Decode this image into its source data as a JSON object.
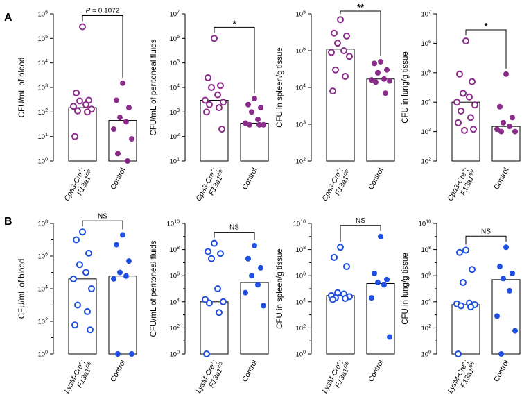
{
  "colors": {
    "purple": "#8b2c8b",
    "blue": "#1f4fe0",
    "axis": "#000000"
  },
  "panels": [
    {
      "letter": "A",
      "xcats": [
        {
          "main": "Cpa3-Cre",
          "sup": "+",
          "tail": ";",
          "line2": "F13a1",
          "line2_sup": "fl/fl",
          "italic": true
        },
        {
          "main": "Control",
          "sup": "",
          "tail": "",
          "line2": "",
          "line2_sup": "",
          "italic": false
        }
      ],
      "charts": [
        {
          "type": "scatter-bar",
          "ylabel": "CFU/mL of blood",
          "ylim_log10": [
            0,
            6
          ],
          "bars": [
            150,
            45
          ],
          "series": [
            {
              "name": "Cpa3-Cre+;F13a1fl/fl",
              "style": "open",
              "color": "purple",
              "values": [
                300000,
                600,
                300,
                280,
                200,
                170,
                130,
                110,
                100,
                10
              ]
            },
            {
              "name": "Control",
              "style": "filled",
              "color": "purple",
              "values": [
                1500,
                300,
                150,
                60,
                40,
                20,
                8,
                2,
                1
              ]
            }
          ],
          "significance": {
            "label": "P = 0.1072",
            "p_prefix": "P",
            "p_rest": " = 0.1072"
          }
        },
        {
          "type": "scatter-bar",
          "ylabel": "CFU/mL of peritoneal fluids",
          "ylim_log10": [
            1,
            7
          ],
          "bars": [
            3000,
            350
          ],
          "series": [
            {
              "name": "Cpa3-Cre+;F13a1fl/fl",
              "style": "open",
              "color": "purple",
              "values": [
                1000000,
                25000,
                12000,
                10000,
                5000,
                3000,
                2500,
                2000,
                1500,
                1000,
                200
              ]
            },
            {
              "name": "Control",
              "style": "filled",
              "color": "purple",
              "values": [
                3500,
                2000,
                1500,
                1000,
                500,
                350,
                300,
                300,
                300
              ]
            }
          ],
          "significance": {
            "label": "*"
          }
        },
        {
          "type": "scatter-bar",
          "ylabel": "CFU in spleen/g tissue",
          "ylim_log10": [
            2,
            6
          ],
          "bars": [
            110000,
            17000
          ],
          "series": [
            {
              "name": "Cpa3-Cre+;F13a1fl/fl",
              "style": "open",
              "color": "purple",
              "values": [
                700000,
                300000,
                250000,
                160000,
                100000,
                90000,
                70000,
                30000,
                20000,
                8000
              ]
            },
            {
              "name": "Control",
              "style": "filled",
              "color": "purple",
              "values": [
                50000,
                45000,
                30000,
                25000,
                17000,
                16000,
                15000,
                14000,
                7000
              ]
            }
          ],
          "significance": {
            "label": "**"
          }
        },
        {
          "type": "scatter-bar",
          "ylabel": "CFU in lung/g tissue",
          "ylim_log10": [
            2,
            7
          ],
          "bars": [
            10000,
            1500
          ],
          "series": [
            {
              "name": "Cpa3-Cre+;F13a1fl/fl",
              "style": "open",
              "color": "purple",
              "values": [
                1200000,
                90000,
                50000,
                20000,
                15000,
                10000,
                8000,
                5000,
                3000,
                2000,
                1200,
                1100
              ]
            },
            {
              "name": "Control",
              "style": "filled",
              "color": "purple",
              "values": [
                90000,
                7000,
                3000,
                2000,
                1500,
                1200,
                1000,
                1000
              ]
            }
          ],
          "significance": {
            "label": "*"
          }
        }
      ]
    },
    {
      "letter": "B",
      "xcats": [
        {
          "main": "LysM-Cre",
          "sup": "+",
          "tail": ";",
          "line2": "F13a1",
          "line2_sup": "fl/fl",
          "italic": true
        },
        {
          "main": "Control",
          "sup": "",
          "tail": "",
          "line2": "",
          "line2_sup": "",
          "italic": false
        }
      ],
      "charts": [
        {
          "type": "scatter-bar",
          "ylabel": "CFU/mL of blood",
          "ylim_log10": [
            0,
            8
          ],
          "bars": [
            40000,
            60000
          ],
          "series": [
            {
              "name": "LysM-Cre+;F13a1fl/fl",
              "style": "open",
              "color": "blue",
              "values": [
                30000000,
                10000000,
                1500000,
                300000,
                100000,
                40000,
                10000,
                1000,
                400,
                60,
                30
              ]
            },
            {
              "name": "Control",
              "style": "filled",
              "color": "blue",
              "values": [
                20000000,
                5000000,
                500000,
                100000,
                60000,
                40000,
                1,
                1
              ]
            }
          ],
          "significance": {
            "label": "NS"
          }
        },
        {
          "type": "scatter-bar",
          "ylabel": "CFU/mL of peritoneal fluids",
          "ylim_log10": [
            0,
            10
          ],
          "bars": [
            10000,
            300000
          ],
          "series": [
            {
              "name": "LysM-Cre+;F13a1fl/fl",
              "style": "open",
              "color": "blue",
              "values": [
                300000000,
                70000000,
                50000000,
                20000000,
                100000,
                15000,
                10000,
                8000,
                1500,
                1
              ]
            },
            {
              "name": "Control",
              "style": "filled",
              "color": "blue",
              "values": [
                200000000,
                20000000,
                4000000,
                1000000,
                200000,
                50000,
                5000
              ]
            }
          ],
          "significance": {
            "label": "NS"
          }
        },
        {
          "type": "scatter-bar",
          "ylabel": "CFU in spleen/g tissue",
          "ylim_log10": [
            0,
            10
          ],
          "bars": [
            30000,
            250000
          ],
          "series": [
            {
              "name": "LysM-Cre+;F13a1fl/fl",
              "style": "open",
              "color": "blue",
              "values": [
                150000000,
                25000000,
                5000000,
                50000,
                40000,
                30000,
                25000,
                20000,
                18000,
                15000
              ]
            },
            {
              "name": "Control",
              "style": "filled",
              "color": "blue",
              "values": [
                1000000000,
                1500000,
                500000,
                300000,
                200000,
                20000,
                20
              ]
            }
          ],
          "significance": {
            "label": "NS"
          }
        },
        {
          "type": "scatter-bar",
          "ylabel": "CFU in lung/g tissue",
          "ylim_log10": [
            0,
            10
          ],
          "bars": [
            6000,
            500000
          ],
          "series": [
            {
              "name": "LysM-Cre+;F13a1fl/fl",
              "style": "open",
              "color": "blue",
              "values": [
                90000000,
                60000000,
                3000000,
                300000,
                8000,
                7000,
                6000,
                5000,
                4000,
                1
              ]
            },
            {
              "name": "Control",
              "style": "filled",
              "color": "blue",
              "values": [
                150000000,
                5000000,
                1500000,
                600000,
                70000,
                800,
                60,
                1
              ]
            }
          ],
          "significance": {
            "label": "NS"
          }
        }
      ]
    }
  ],
  "chart_data": [
    {
      "type": "scatter-bar",
      "panel": "A",
      "title": "",
      "xlabel": "",
      "ylabel": "CFU/mL of blood",
      "yscale": "log",
      "ylim": [
        1,
        1000000
      ],
      "categories": [
        "Cpa3-Cre+;F13a1fl/fl",
        "Control"
      ],
      "bar_values": [
        150,
        45
      ],
      "series": [
        {
          "name": "Cpa3-Cre+;F13a1fl/fl",
          "values": [
            300000,
            600,
            300,
            280,
            200,
            170,
            130,
            110,
            100,
            10
          ]
        },
        {
          "name": "Control",
          "values": [
            1500,
            300,
            150,
            60,
            40,
            20,
            8,
            2,
            1
          ]
        }
      ],
      "annotation": "P = 0.1072"
    },
    {
      "type": "scatter-bar",
      "panel": "A",
      "title": "",
      "xlabel": "",
      "ylabel": "CFU/mL of peritoneal fluids",
      "yscale": "log",
      "ylim": [
        10,
        10000000
      ],
      "categories": [
        "Cpa3-Cre+;F13a1fl/fl",
        "Control"
      ],
      "bar_values": [
        3000,
        350
      ],
      "series": [
        {
          "name": "Cpa3-Cre+;F13a1fl/fl",
          "values": [
            1000000,
            25000,
            12000,
            10000,
            5000,
            3000,
            2500,
            2000,
            1500,
            1000,
            200
          ]
        },
        {
          "name": "Control",
          "values": [
            3500,
            2000,
            1500,
            1000,
            500,
            350,
            300,
            300,
            300
          ]
        }
      ],
      "annotation": "*"
    },
    {
      "type": "scatter-bar",
      "panel": "A",
      "title": "",
      "xlabel": "",
      "ylabel": "CFU in spleen/g tissue",
      "yscale": "log",
      "ylim": [
        100,
        1000000
      ],
      "categories": [
        "Cpa3-Cre+;F13a1fl/fl",
        "Control"
      ],
      "bar_values": [
        110000,
        17000
      ],
      "series": [
        {
          "name": "Cpa3-Cre+;F13a1fl/fl",
          "values": [
            700000,
            300000,
            250000,
            160000,
            100000,
            90000,
            70000,
            30000,
            20000,
            8000
          ]
        },
        {
          "name": "Control",
          "values": [
            50000,
            45000,
            30000,
            25000,
            17000,
            16000,
            15000,
            14000,
            7000
          ]
        }
      ],
      "annotation": "**"
    },
    {
      "type": "scatter-bar",
      "panel": "A",
      "title": "",
      "xlabel": "",
      "ylabel": "CFU in lung/g tissue",
      "yscale": "log",
      "ylim": [
        100,
        10000000
      ],
      "categories": [
        "Cpa3-Cre+;F13a1fl/fl",
        "Control"
      ],
      "bar_values": [
        10000,
        1500
      ],
      "series": [
        {
          "name": "Cpa3-Cre+;F13a1fl/fl",
          "values": [
            1200000,
            90000,
            50000,
            20000,
            15000,
            10000,
            8000,
            5000,
            3000,
            2000,
            1200,
            1100
          ]
        },
        {
          "name": "Control",
          "values": [
            90000,
            7000,
            3000,
            2000,
            1500,
            1200,
            1000,
            1000
          ]
        }
      ],
      "annotation": "*"
    },
    {
      "type": "scatter-bar",
      "panel": "B",
      "title": "",
      "xlabel": "",
      "ylabel": "CFU/mL of blood",
      "yscale": "log",
      "ylim": [
        1,
        100000000
      ],
      "categories": [
        "LysM-Cre+;F13a1fl/fl",
        "Control"
      ],
      "bar_values": [
        40000,
        60000
      ],
      "series": [
        {
          "name": "LysM-Cre+;F13a1fl/fl",
          "values": [
            30000000,
            10000000,
            1500000,
            300000,
            100000,
            40000,
            10000,
            1000,
            400,
            60,
            30
          ]
        },
        {
          "name": "Control",
          "values": [
            20000000,
            5000000,
            500000,
            100000,
            60000,
            40000,
            1,
            1
          ]
        }
      ],
      "annotation": "NS"
    },
    {
      "type": "scatter-bar",
      "panel": "B",
      "title": "",
      "xlabel": "",
      "ylabel": "CFU/mL of peritoneal fluids",
      "yscale": "log",
      "ylim": [
        1,
        10000000000
      ],
      "categories": [
        "LysM-Cre+;F13a1fl/fl",
        "Control"
      ],
      "bar_values": [
        10000,
        300000
      ],
      "series": [
        {
          "name": "LysM-Cre+;F13a1fl/fl",
          "values": [
            300000000,
            70000000,
            50000000,
            20000000,
            100000,
            15000,
            10000,
            8000,
            1500,
            1
          ]
        },
        {
          "name": "Control",
          "values": [
            200000000,
            20000000,
            4000000,
            1000000,
            200000,
            50000,
            5000
          ]
        }
      ],
      "annotation": "NS"
    },
    {
      "type": "scatter-bar",
      "panel": "B",
      "title": "",
      "xlabel": "",
      "ylabel": "CFU in spleen/g tissue",
      "yscale": "log",
      "ylim": [
        1,
        10000000000
      ],
      "categories": [
        "LysM-Cre+;F13a1fl/fl",
        "Control"
      ],
      "bar_values": [
        30000,
        250000
      ],
      "series": [
        {
          "name": "LysM-Cre+;F13a1fl/fl",
          "values": [
            150000000,
            25000000,
            5000000,
            50000,
            40000,
            30000,
            25000,
            20000,
            18000,
            15000
          ]
        },
        {
          "name": "Control",
          "values": [
            1000000000,
            1500000,
            500000,
            300000,
            200000,
            20000,
            20
          ]
        }
      ],
      "annotation": "NS"
    },
    {
      "type": "scatter-bar",
      "panel": "B",
      "title": "",
      "xlabel": "",
      "ylabel": "CFU in lung/g tissue",
      "yscale": "log",
      "ylim": [
        1,
        10000000000
      ],
      "categories": [
        "LysM-Cre+;F13a1fl/fl",
        "Control"
      ],
      "bar_values": [
        6000,
        500000
      ],
      "series": [
        {
          "name": "LysM-Cre+;F13a1fl/fl",
          "values": [
            90000000,
            60000000,
            3000000,
            300000,
            8000,
            7000,
            6000,
            5000,
            4000,
            1
          ]
        },
        {
          "name": "Control",
          "values": [
            150000000,
            5000000,
            1500000,
            600000,
            70000,
            800,
            60,
            1
          ]
        }
      ],
      "annotation": "NS"
    }
  ]
}
